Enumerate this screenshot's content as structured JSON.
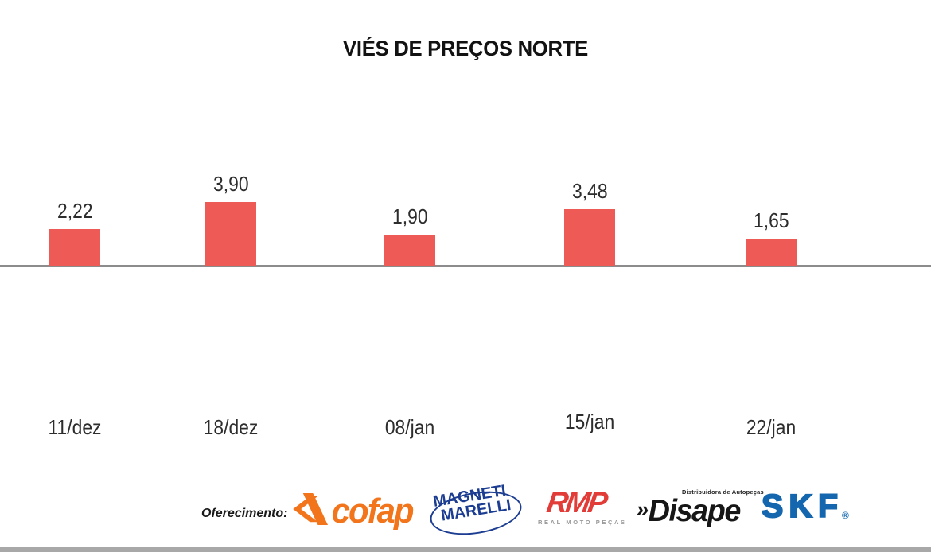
{
  "chart_data": {
    "type": "bar",
    "title": "VIÉS DE PREÇOS NORTE",
    "categories": [
      "11/dez",
      "18/dez",
      "08/jan",
      "15/jan",
      "22/jan"
    ],
    "values": [
      2.22,
      3.9,
      1.9,
      3.48,
      1.65
    ],
    "value_labels": [
      "2,22",
      "3,90",
      "1,90",
      "3,48",
      "1,65"
    ],
    "bar_color": "#ee5a55",
    "axis_line_color": "#8c8c8c",
    "grid": false,
    "legend": false,
    "value_label_position": "above-bar",
    "ylim": [
      0,
      4.5
    ]
  },
  "sponsors": {
    "label": "Oferecimento:",
    "logos": [
      {
        "name": "Cofap",
        "text": "cofap",
        "color": "#f2741b",
        "icon": "cofap-arrows-icon"
      },
      {
        "name": "Magneti Marelli",
        "line1": "MAGNETI",
        "line2": "MARELLI",
        "color": "#1c3d91"
      },
      {
        "name": "RMP",
        "text": "RMP",
        "subtext": "REAL MOTO PEÇAS",
        "color": "#e23c39",
        "subtext_color": "#999999"
      },
      {
        "name": "Disape",
        "chevrons": "»",
        "text": "Disape",
        "subtext": "Distribuidora de Autopeças",
        "color": "#161616"
      },
      {
        "name": "SKF",
        "text": "SKF",
        "registered_mark": "®",
        "color": "#1467ae"
      }
    ]
  },
  "footer": {
    "bottom_bar_color": "#a8a8a8"
  }
}
